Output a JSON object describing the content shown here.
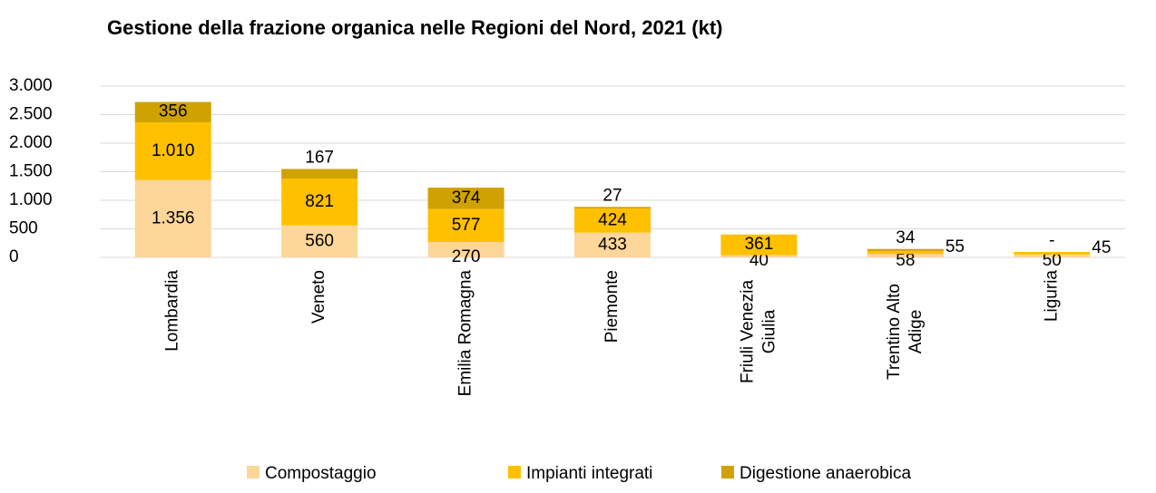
{
  "chart_data": {
    "type": "stacked_bar",
    "title": "Gestione della frazione organica nelle Regioni del Nord, 2021 (kt)",
    "categories": [
      "Lombardia",
      "Veneto",
      "Emilia Romagna",
      "Piemonte",
      "Friuli Venezia Giulia",
      "Trentino Alto Adige",
      "Liguria"
    ],
    "series": [
      {
        "name": "Compostaggio",
        "color": "#fdd699",
        "values": [
          1356,
          560,
          270,
          433,
          40,
          58,
          50
        ],
        "value_labels": [
          "1.356",
          "560",
          "270",
          "433",
          "40",
          "58",
          "50"
        ]
      },
      {
        "name": "Impianti integrati",
        "color": "#ffc000",
        "values": [
          1010,
          821,
          577,
          424,
          361,
          55,
          45
        ],
        "value_labels": [
          "1.010",
          "821",
          "577",
          "424",
          "361",
          "55",
          "45"
        ]
      },
      {
        "name": "Digestione anaerobica",
        "color": "#cfa200",
        "values": [
          356,
          167,
          374,
          27,
          null,
          34,
          0
        ],
        "value_labels": [
          "356",
          "167",
          "374",
          "27",
          null,
          "34",
          "-"
        ]
      }
    ],
    "ylim": [
      0,
      3000
    ],
    "yticks": [
      0,
      500,
      {
        "value": 1000,
        "label": "1.000"
      },
      {
        "value": 1500,
        "label": "1.500"
      },
      {
        "value": 2000,
        "label": "2.000"
      },
      {
        "value": 2500,
        "label": "2.500"
      },
      {
        "value": 3000,
        "label": "3.000"
      }
    ],
    "grid": true,
    "legend": "bottom"
  }
}
